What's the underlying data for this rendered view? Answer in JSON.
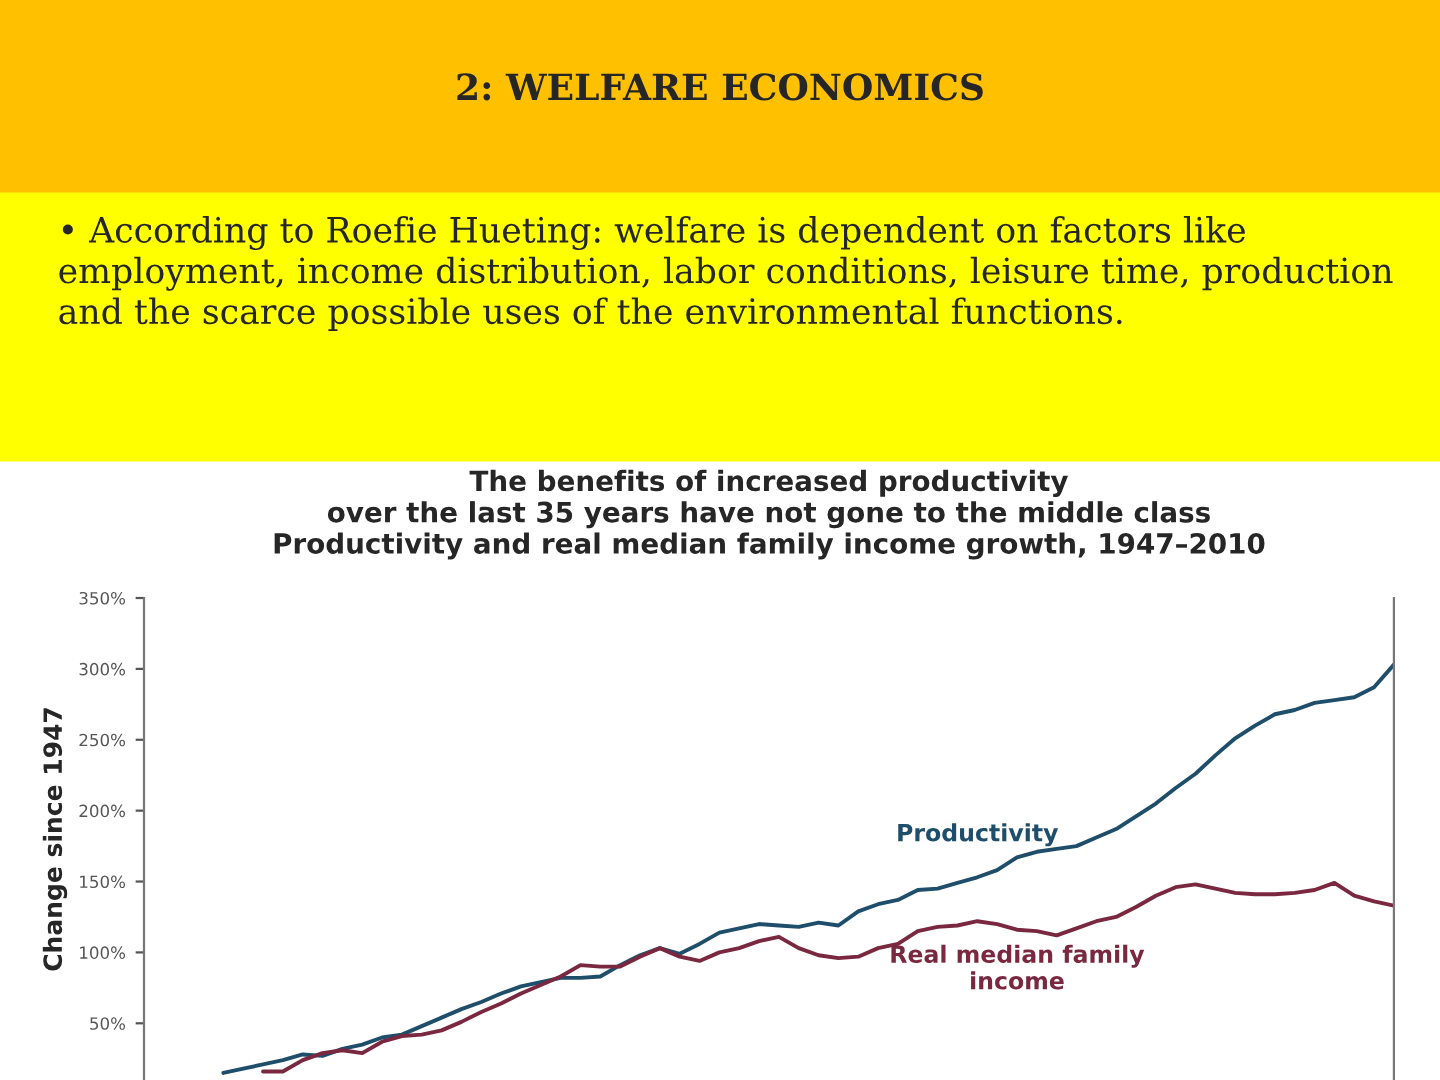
{
  "chart_data": {
    "type": "line",
    "title": "The benefits of increased productivity\nover the last 35 years have not gone to the middle class",
    "subtitle": "Productivity and real median family income growth, 1947–2010",
    "ylabel": "Change since 1947",
    "annotations": [
      "2: WELFARE ECONOMICS",
      "• According to Roefie Hueting: welfare is dependent on factors like employment, income distribution, labor conditions, leisure time, production and the scarce possible uses of the environmental functions."
    ],
    "categories": [
      null,
      null,
      null,
      null,
      null,
      null,
      null,
      null,
      null,
      null,
      null,
      null,
      null,
      null,
      null,
      null,
      null,
      null,
      null,
      null,
      null,
      null,
      null,
      null,
      null,
      null,
      null,
      null,
      null,
      null,
      null,
      null,
      null,
      null,
      null,
      null,
      null,
      null,
      null,
      null,
      null,
      null,
      null,
      null,
      null,
      null,
      null,
      null,
      null,
      null,
      null,
      null,
      null,
      null,
      null,
      null,
      null,
      null,
      null,
      null,
      null,
      null,
      null,
      null
    ],
    "series": [
      {
        "name": "Productivity",
        "color": "#1f4e6b",
        "values": [
          null,
          null,
          null,
          null,
          15,
          18,
          21,
          24,
          28,
          27,
          32,
          35,
          40,
          42,
          48,
          54,
          60,
          65,
          71,
          76,
          79,
          82,
          82,
          83,
          91,
          98,
          103,
          99,
          106,
          114,
          117,
          120,
          119,
          118,
          121,
          119,
          129,
          134,
          137,
          144,
          145,
          149,
          153,
          158,
          167,
          171,
          173,
          175,
          181,
          187,
          196,
          205,
          216,
          226,
          239,
          251,
          260,
          268,
          271,
          276,
          278,
          280,
          287,
          303
        ]
      },
      {
        "name": "Real median family\nincome",
        "color": "#7a2840",
        "values": [
          null,
          null,
          null,
          null,
          null,
          null,
          16,
          16,
          24,
          29,
          31,
          29,
          37,
          41,
          42,
          45,
          51,
          58,
          64,
          71,
          77,
          83,
          91,
          90,
          90,
          97,
          103,
          97,
          94,
          100,
          103,
          108,
          111,
          103,
          98,
          96,
          97,
          103,
          106,
          115,
          118,
          119,
          122,
          120,
          116,
          115,
          112,
          117,
          122,
          125,
          132,
          140,
          146,
          148,
          145,
          142,
          141,
          141,
          142,
          144,
          149,
          140,
          136,
          133
        ]
      }
    ],
    "ylim": [
      10,
      350
    ],
    "yticks": [
      {
        "value": 50,
        "label": "50%"
      },
      {
        "value": 100,
        "label": "100%"
      },
      {
        "value": 150,
        "label": "150%"
      },
      {
        "value": 200,
        "label": "200%"
      },
      {
        "value": 250,
        "label": "250%"
      },
      {
        "value": 300,
        "label": "300%"
      },
      {
        "value": 350,
        "label": "350%"
      }
    ],
    "grid": false,
    "legend": false,
    "tick_labels": "y",
    "line_style": "solid",
    "marker": "none"
  }
}
